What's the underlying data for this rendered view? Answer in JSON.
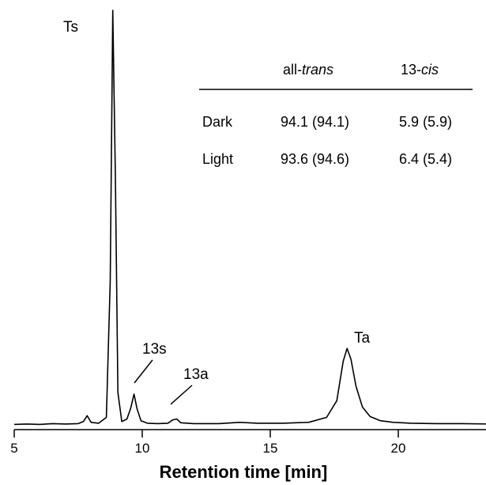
{
  "chart_data": {
    "type": "line",
    "title": "",
    "xlabel": "Retention time [min]",
    "ylabel": "",
    "xlim": [
      5,
      24
    ],
    "ylim": [
      0,
      100
    ],
    "x_ticks": [
      5,
      10,
      15,
      20
    ],
    "grid": false,
    "legend": "none",
    "series": [
      {
        "values_note": "chromatogram trace (relative absorbance)",
        "x": [
          5.0,
          5.5,
          6.0,
          6.5,
          7.0,
          7.5,
          7.7,
          7.85,
          8.0,
          8.3,
          8.6,
          8.75,
          8.85,
          8.95,
          9.05,
          9.2,
          9.4,
          9.55,
          9.68,
          9.8,
          9.95,
          10.2,
          10.6,
          11.0,
          11.2,
          11.35,
          11.5,
          12.0,
          13.0,
          13.8,
          14.5,
          15.5,
          16.5,
          17.2,
          17.6,
          17.85,
          18.0,
          18.15,
          18.35,
          18.6,
          18.9,
          19.3,
          19.8,
          20.5,
          21.5,
          22.5,
          23.5,
          24.0
        ],
        "y": [
          0.3,
          0.4,
          0.3,
          0.5,
          0.4,
          0.5,
          1.0,
          2.4,
          0.8,
          0.6,
          2.0,
          35.0,
          100.0,
          60.0,
          8.0,
          1.0,
          1.6,
          4.2,
          7.6,
          4.0,
          1.2,
          0.6,
          0.5,
          0.6,
          1.4,
          1.6,
          0.7,
          0.5,
          0.5,
          0.8,
          0.6,
          0.6,
          0.8,
          2.0,
          6.0,
          15.5,
          18.6,
          16.0,
          9.5,
          4.5,
          2.2,
          1.2,
          0.8,
          0.6,
          0.5,
          0.5,
          0.4,
          0.4
        ]
      }
    ],
    "annotations": [
      {
        "label": "Ts",
        "x": 8.85
      },
      {
        "label": "13s",
        "x": 9.68
      },
      {
        "label": "13a",
        "x": 11.3
      },
      {
        "label": "Ta",
        "x": 18.0
      }
    ]
  },
  "table": {
    "col1_prefix": "all-",
    "col1_italic": "trans",
    "col2_prefix": "13-",
    "col2_italic": "cis",
    "rows": [
      {
        "label": "Dark",
        "trans": "94.1 (94.1)",
        "cis": "5.9 (5.9)"
      },
      {
        "label": "Light",
        "trans": "93.6 (94.6)",
        "cis": "6.4 (5.4)"
      }
    ]
  }
}
